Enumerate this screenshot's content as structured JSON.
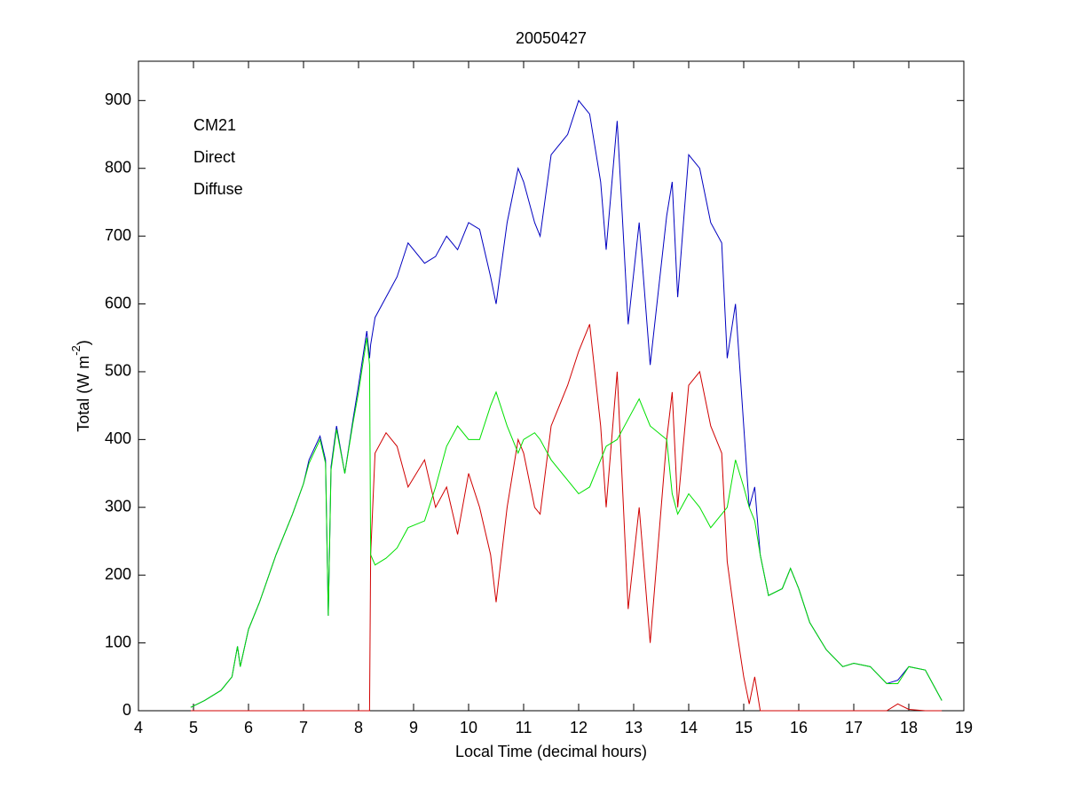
{
  "chart_data": {
    "type": "line",
    "title": "20050427",
    "xlabel": "Local Time (decimal hours)",
    "ylabel": {
      "text": "Total (W m",
      "sup": "-2",
      "tail": ")"
    },
    "x": [
      4.95,
      5.2,
      5.5,
      5.7,
      5.8,
      5.85,
      6.0,
      6.2,
      6.5,
      6.8,
      7.0,
      7.1,
      7.3,
      7.4,
      7.45,
      7.5,
      7.6,
      7.75,
      7.9,
      8.0,
      8.15,
      8.2,
      8.22,
      8.3,
      8.5,
      8.7,
      8.9,
      9.2,
      9.4,
      9.6,
      9.8,
      10.0,
      10.2,
      10.4,
      10.5,
      10.7,
      10.9,
      11.0,
      11.2,
      11.3,
      11.5,
      11.8,
      12.0,
      12.2,
      12.4,
      12.5,
      12.7,
      12.9,
      13.1,
      13.3,
      13.6,
      13.7,
      13.8,
      14.0,
      14.2,
      14.4,
      14.6,
      14.7,
      14.85,
      15.0,
      15.1,
      15.2,
      15.3,
      15.45,
      15.7,
      15.85,
      16.0,
      16.2,
      16.5,
      16.8,
      17.0,
      17.3,
      17.6,
      17.8,
      18.0,
      18.3,
      18.6
    ],
    "series": [
      {
        "name": "CM21",
        "color": "#0000c0",
        "values": [
          5,
          15,
          30,
          50,
          95,
          65,
          120,
          160,
          230,
          290,
          335,
          370,
          405,
          370,
          140,
          360,
          420,
          350,
          430,
          480,
          560,
          520,
          540,
          580,
          610,
          640,
          690,
          660,
          670,
          700,
          680,
          720,
          710,
          640,
          600,
          720,
          800,
          780,
          720,
          700,
          820,
          850,
          900,
          880,
          780,
          680,
          870,
          570,
          720,
          510,
          730,
          780,
          610,
          820,
          800,
          720,
          690,
          520,
          600,
          420,
          300,
          330,
          230,
          170,
          180,
          210,
          180,
          130,
          90,
          65,
          70,
          65,
          40,
          45,
          65,
          60,
          15
        ]
      },
      {
        "name": "Direct",
        "color": "#d00000",
        "values": [
          0,
          0,
          0,
          0,
          0,
          0,
          0,
          0,
          0,
          0,
          0,
          0,
          0,
          0,
          0,
          0,
          0,
          0,
          0,
          0,
          0,
          0,
          230,
          380,
          410,
          390,
          330,
          370,
          300,
          330,
          260,
          350,
          300,
          230,
          160,
          300,
          400,
          380,
          300,
          290,
          420,
          480,
          530,
          570,
          420,
          300,
          500,
          150,
          300,
          100,
          400,
          470,
          300,
          480,
          500,
          420,
          380,
          220,
          130,
          50,
          10,
          50,
          0,
          0,
          0,
          0,
          0,
          0,
          0,
          0,
          0,
          0,
          0,
          10,
          2,
          0,
          0
        ]
      },
      {
        "name": "Diffuse",
        "color": "#00e000",
        "values": [
          5,
          15,
          30,
          50,
          95,
          65,
          120,
          160,
          230,
          290,
          335,
          365,
          400,
          365,
          140,
          355,
          415,
          350,
          425,
          470,
          550,
          510,
          230,
          215,
          225,
          240,
          270,
          280,
          330,
          390,
          420,
          400,
          400,
          450,
          470,
          420,
          380,
          400,
          410,
          400,
          370,
          340,
          320,
          330,
          370,
          390,
          400,
          430,
          460,
          420,
          400,
          320,
          290,
          320,
          300,
          270,
          290,
          300,
          370,
          330,
          300,
          280,
          230,
          170,
          180,
          210,
          180,
          130,
          90,
          65,
          70,
          65,
          40,
          40,
          65,
          60,
          15
        ]
      }
    ],
    "xlim": [
      4,
      19
    ],
    "xticks": [
      4,
      5,
      6,
      7,
      8,
      9,
      10,
      11,
      12,
      13,
      14,
      15,
      16,
      17,
      18,
      19
    ],
    "ylim": [
      0,
      958
    ],
    "yticks": [
      0,
      100,
      200,
      300,
      400,
      500,
      600,
      700,
      800,
      900
    ],
    "grid": false,
    "legend": "upper left"
  }
}
